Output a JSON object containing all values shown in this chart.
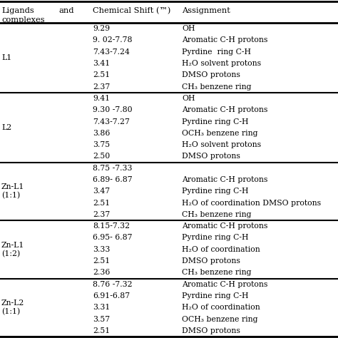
{
  "col0_header_left": "Ligands",
  "col0_header_right": "and",
  "col0_header_sub": "complexes",
  "col1_header": "Chemical Shift (™)",
  "col2_header": "Assignment",
  "rows": [
    {
      "compound": "L1",
      "entries": [
        {
          "shift": "9.29",
          "assignment": "OH"
        },
        {
          "shift": "9. 02-7.78",
          "assignment": "Aromatic C-H protons"
        },
        {
          "shift": "7.43-7.24",
          "assignment": "Pyrdine  ring C-H"
        },
        {
          "shift": "3.41",
          "assignment": "H₂O solvent protons"
        },
        {
          "shift": "2.51",
          "assignment": "DMSO protons"
        },
        {
          "shift": "2.37",
          "assignment": "CH₃ benzene ring"
        }
      ]
    },
    {
      "compound": "L2",
      "entries": [
        {
          "shift": "9.41",
          "assignment": "OH"
        },
        {
          "shift": "9.30 -7.80",
          "assignment": "Aromatic C-H protons"
        },
        {
          "shift": "7.43-7.27",
          "assignment": "Pyrdine ring C-H"
        },
        {
          "shift": "3.86",
          "assignment": "OCH₃ benzene ring"
        },
        {
          "shift": "3.75",
          "assignment": "H₂O solvent protons"
        },
        {
          "shift": "2.50",
          "assignment": "DMSO protons"
        }
      ]
    },
    {
      "compound": "Zn-L1\n(1:1)",
      "entries": [
        {
          "shift": "8.75 -7.33",
          "assignment": ""
        },
        {
          "shift": "6.89- 6.87",
          "assignment": "Aromatic C-H protons"
        },
        {
          "shift": "3.47",
          "assignment": "Pyrdine ring C-H"
        },
        {
          "shift": "2.51",
          "assignment": "H₂O of coordination DMSO protons"
        },
        {
          "shift": "2.37",
          "assignment": "CH₃ benzene ring"
        }
      ]
    },
    {
      "compound": "Zn-L1\n(1:2)",
      "entries": [
        {
          "shift": "8.15-7.32",
          "assignment": "Aromatic C-H protons"
        },
        {
          "shift": "6.95- 6.87",
          "assignment": "Pyrdine ring C-H"
        },
        {
          "shift": "3.33",
          "assignment": "H₂O of coordination"
        },
        {
          "shift": "2.51",
          "assignment": "DMSO protons"
        },
        {
          "shift": "2.36",
          "assignment": "CH₃ benzene ring"
        }
      ]
    },
    {
      "compound": "Zn-L2\n(1:1)",
      "entries": [
        {
          "shift": "8.76 -7.32",
          "assignment": "Aromatic C-H protons"
        },
        {
          "shift": "6.91-6.87",
          "assignment": "Pyrdine ring C-H"
        },
        {
          "shift": "3.31",
          "assignment": "H₂O of coordination"
        },
        {
          "shift": "3.57",
          "assignment": "OCH₃ benzene ring"
        },
        {
          "shift": "2.51",
          "assignment": "DMSO protons"
        }
      ]
    }
  ],
  "bg_color": "#ffffff",
  "text_color": "#000000",
  "fontsize": 7.8,
  "header_fontsize": 8.2
}
